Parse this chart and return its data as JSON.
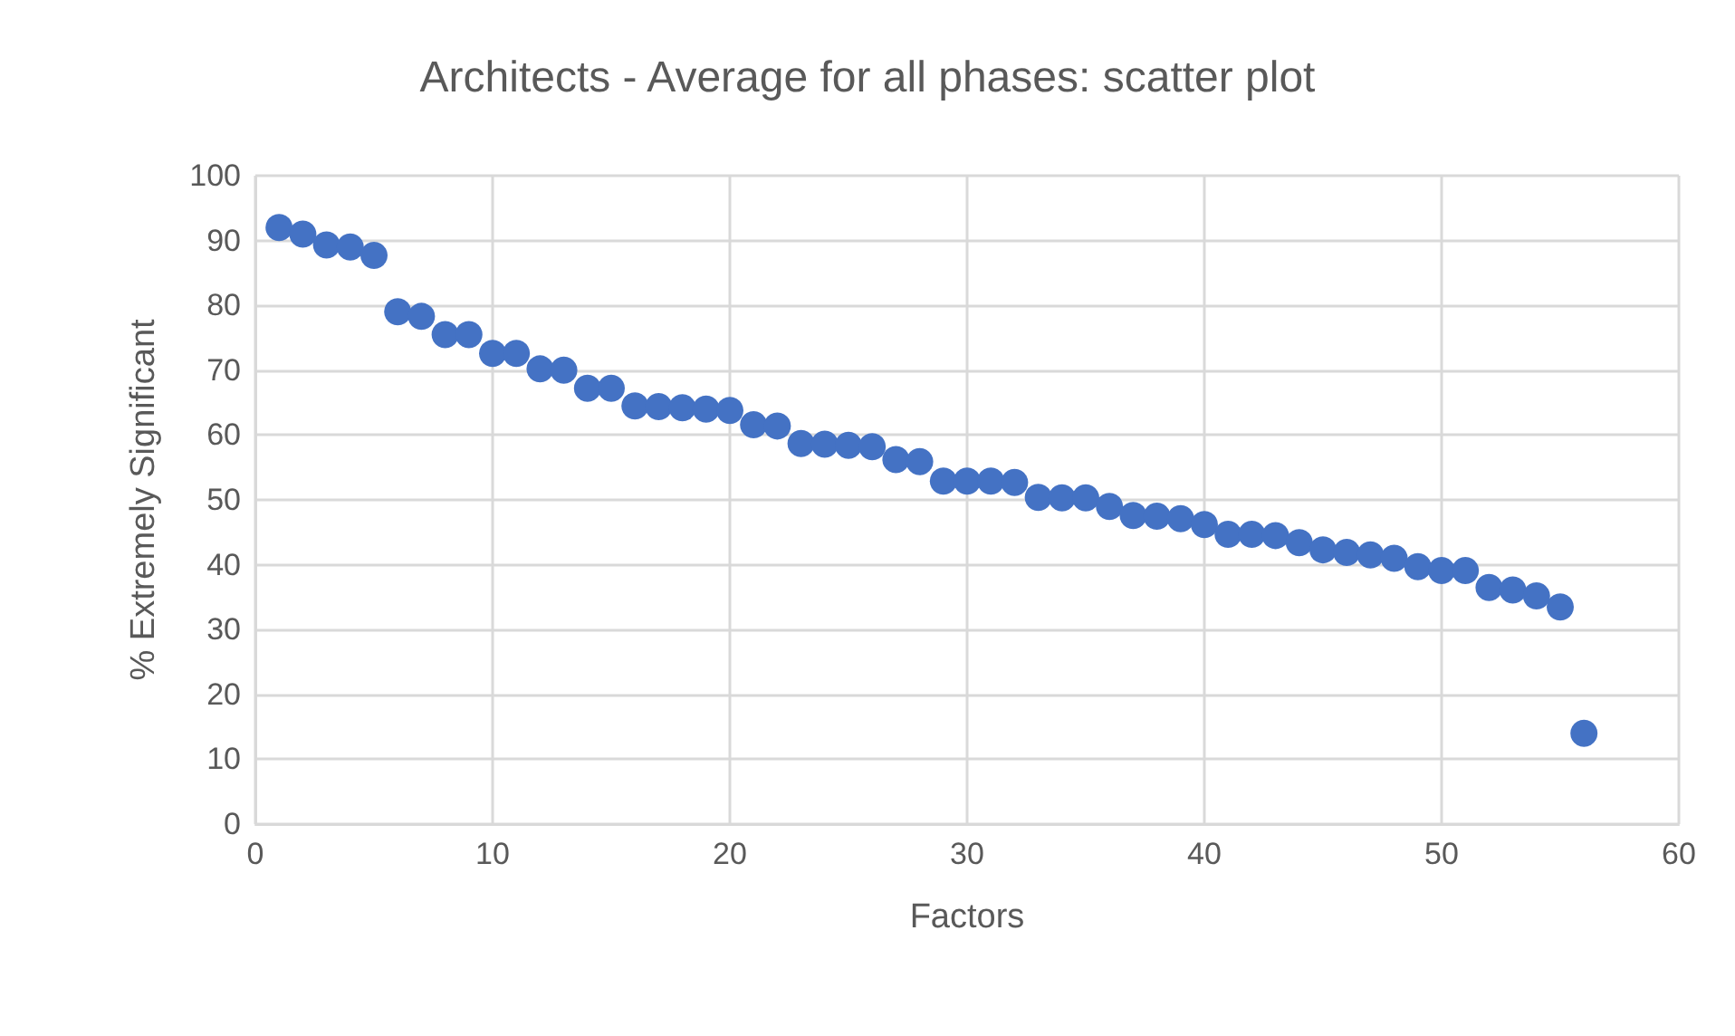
{
  "chart_data": {
    "type": "scatter",
    "title": "Architects - Average for all phases: scatter plot",
    "xlabel": "Factors",
    "ylabel": "% Extremely Significant",
    "x": [
      1,
      2,
      3,
      4,
      5,
      6,
      7,
      8,
      9,
      10,
      11,
      12,
      13,
      14,
      15,
      16,
      17,
      18,
      19,
      20,
      21,
      22,
      23,
      24,
      25,
      26,
      27,
      28,
      29,
      30,
      31,
      32,
      33,
      34,
      35,
      36,
      37,
      38,
      39,
      40,
      41,
      42,
      43,
      44,
      45,
      46,
      47,
      48,
      49,
      50,
      51,
      52,
      53,
      54,
      55,
      56
    ],
    "values": [
      92,
      91,
      89.3,
      89,
      87.7,
      79,
      78.3,
      75.5,
      75.5,
      72.6,
      72.6,
      70.2,
      70,
      67.2,
      67.2,
      64.5,
      64.4,
      64.2,
      64,
      63.8,
      61.6,
      61.4,
      58.7,
      58.6,
      58.4,
      58.2,
      56.2,
      55.9,
      52.9,
      52.9,
      52.9,
      52.7,
      50.4,
      50.3,
      50.3,
      49,
      47.6,
      47.5,
      47.1,
      46.2,
      44.7,
      44.7,
      44.5,
      43.4,
      42.3,
      41.9,
      41.5,
      41,
      39.7,
      39.1,
      39.1,
      36.5,
      36.1,
      35.2,
      33.5,
      14
    ],
    "color": "#4472c4",
    "marker": "circle",
    "xlim": [
      0,
      60
    ],
    "xticks": [
      0,
      10,
      20,
      30,
      40,
      50,
      60
    ],
    "ylim": [
      0,
      100
    ],
    "yticks": [
      0,
      10,
      20,
      30,
      40,
      50,
      60,
      70,
      80,
      90,
      100
    ],
    "grid": true
  }
}
